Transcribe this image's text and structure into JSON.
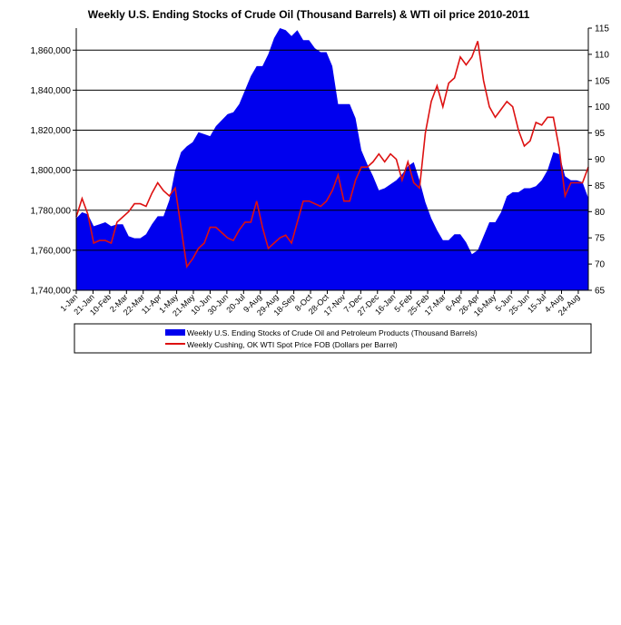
{
  "chart_data": {
    "type": "area+line",
    "title": "Weekly U.S. Ending Stocks of Crude Oil  (Thousand Barrels) & WTI oil price 2010-2011",
    "x_tick_labels": [
      "1-Jan",
      "21-Jan",
      "10-Feb",
      "2-Mar",
      "22-Mar",
      "11-Apr",
      "1-May",
      "21-May",
      "10-Jun",
      "30-Jun",
      "20-Jul",
      "9-Aug",
      "29-Aug",
      "18-Sep",
      "8-Oct",
      "28-Oct",
      "17-Nov",
      "7-Dec",
      "27-Dec",
      "16-Jan",
      "5-Feb",
      "25-Feb",
      "17-Mar",
      "6-Apr",
      "26-Apr",
      "16-May",
      "5-Jun",
      "25-Jun",
      "15-Jul",
      "4-Aug",
      "24-Aug"
    ],
    "y_left": {
      "ylim": [
        1740000,
        1871000
      ],
      "ticks": [
        1740000,
        1760000,
        1780000,
        1800000,
        1820000,
        1840000,
        1860000
      ],
      "tick_labels": [
        "1,740,000",
        "1,760,000",
        "1,780,000",
        "1,800,000",
        "1,820,000",
        "1,840,000",
        "1,860,000"
      ]
    },
    "y_right": {
      "ylim": [
        65,
        115
      ],
      "ticks": [
        65,
        70,
        75,
        80,
        85,
        90,
        95,
        100,
        105,
        110,
        115
      ],
      "tick_labels": [
        "65",
        "70",
        "75",
        "80",
        "85",
        "90",
        "95",
        "100",
        "105",
        "110",
        "115"
      ]
    },
    "grid": "horizontal",
    "legend_placement": "bottom",
    "series": [
      {
        "name": "Weekly U.S. Ending Stocks of Crude Oil and Petroleum Products  (Thousand Barrels)",
        "type": "area",
        "axis": "left",
        "color": "#0000ee",
        "values": [
          1776000,
          1779000,
          1778000,
          1772000,
          1773000,
          1774000,
          1772000,
          1773000,
          1773000,
          1767000,
          1766000,
          1766000,
          1768000,
          1773000,
          1777000,
          1777000,
          1785000,
          1800000,
          1809000,
          1812000,
          1814000,
          1819000,
          1818000,
          1817000,
          1822000,
          1825000,
          1828000,
          1829000,
          1833000,
          1840000,
          1847000,
          1852000,
          1852000,
          1858000,
          1866000,
          1871000,
          1870000,
          1867000,
          1870000,
          1865000,
          1865000,
          1861000,
          1859000,
          1859000,
          1852000,
          1833000,
          1833000,
          1833000,
          1826000,
          1810000,
          1803000,
          1797000,
          1790000,
          1791000,
          1793000,
          1795000,
          1798000,
          1802000,
          1804000,
          1795000,
          1784000,
          1776000,
          1770000,
          1765000,
          1765000,
          1768000,
          1768000,
          1764000,
          1758000,
          1760000,
          1767000,
          1774000,
          1774000,
          1779000,
          1787000,
          1789000,
          1789000,
          1791000,
          1791000,
          1792000,
          1795000,
          1800000,
          1809000,
          1808000,
          1797000,
          1795000,
          1795000,
          1794000,
          1786000
        ]
      },
      {
        "name": "Weekly Cushing, OK WTI Spot Price FOB  (Dollars per Barrel)",
        "type": "line",
        "axis": "right",
        "color": "#dd1111",
        "values": [
          79,
          82.5,
          79.5,
          74,
          74.5,
          74.5,
          74,
          78,
          79,
          80,
          81.5,
          81.5,
          81,
          83.5,
          85.5,
          84,
          83,
          84.5,
          77,
          69.5,
          71,
          73,
          74,
          77,
          77,
          76,
          75,
          74.5,
          76.5,
          78,
          78,
          82,
          77,
          73,
          74,
          75,
          75.5,
          74,
          78,
          82,
          82,
          81.5,
          81,
          82,
          84,
          87,
          82,
          82,
          86,
          88.5,
          88.5,
          89.5,
          91,
          89.5,
          91,
          90,
          86,
          89.5,
          85.5,
          84.5,
          95,
          101,
          104,
          100,
          104.5,
          105.5,
          109.5,
          108,
          109.5,
          112.5,
          105,
          100,
          98,
          99.5,
          101,
          100,
          95.5,
          92.5,
          93.5,
          97,
          96.5,
          98,
          98,
          92,
          83,
          85.5,
          85.5,
          85.5,
          88.5
        ]
      }
    ]
  }
}
